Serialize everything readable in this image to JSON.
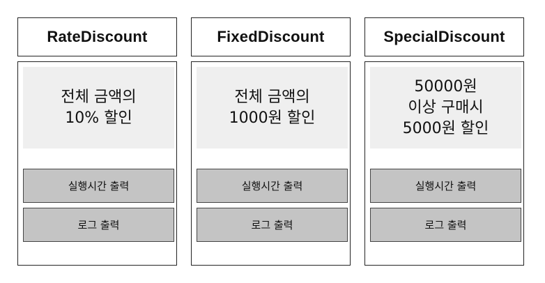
{
  "columns": [
    {
      "title": "RateDiscount",
      "description": [
        "전체 금액의",
        "10% 할인"
      ],
      "buttons": [
        "실행시간 출력",
        "로그 출력"
      ]
    },
    {
      "title": "FixedDiscount",
      "description": [
        "전체 금액의",
        "1000원 할인"
      ],
      "buttons": [
        "실행시간 출력",
        "로그 출력"
      ]
    },
    {
      "title": "SpecialDiscount",
      "description": [
        "50000원",
        "이상 구매시",
        "5000원 할인"
      ],
      "buttons": [
        "실행시간 출력",
        "로그 출력"
      ]
    }
  ]
}
